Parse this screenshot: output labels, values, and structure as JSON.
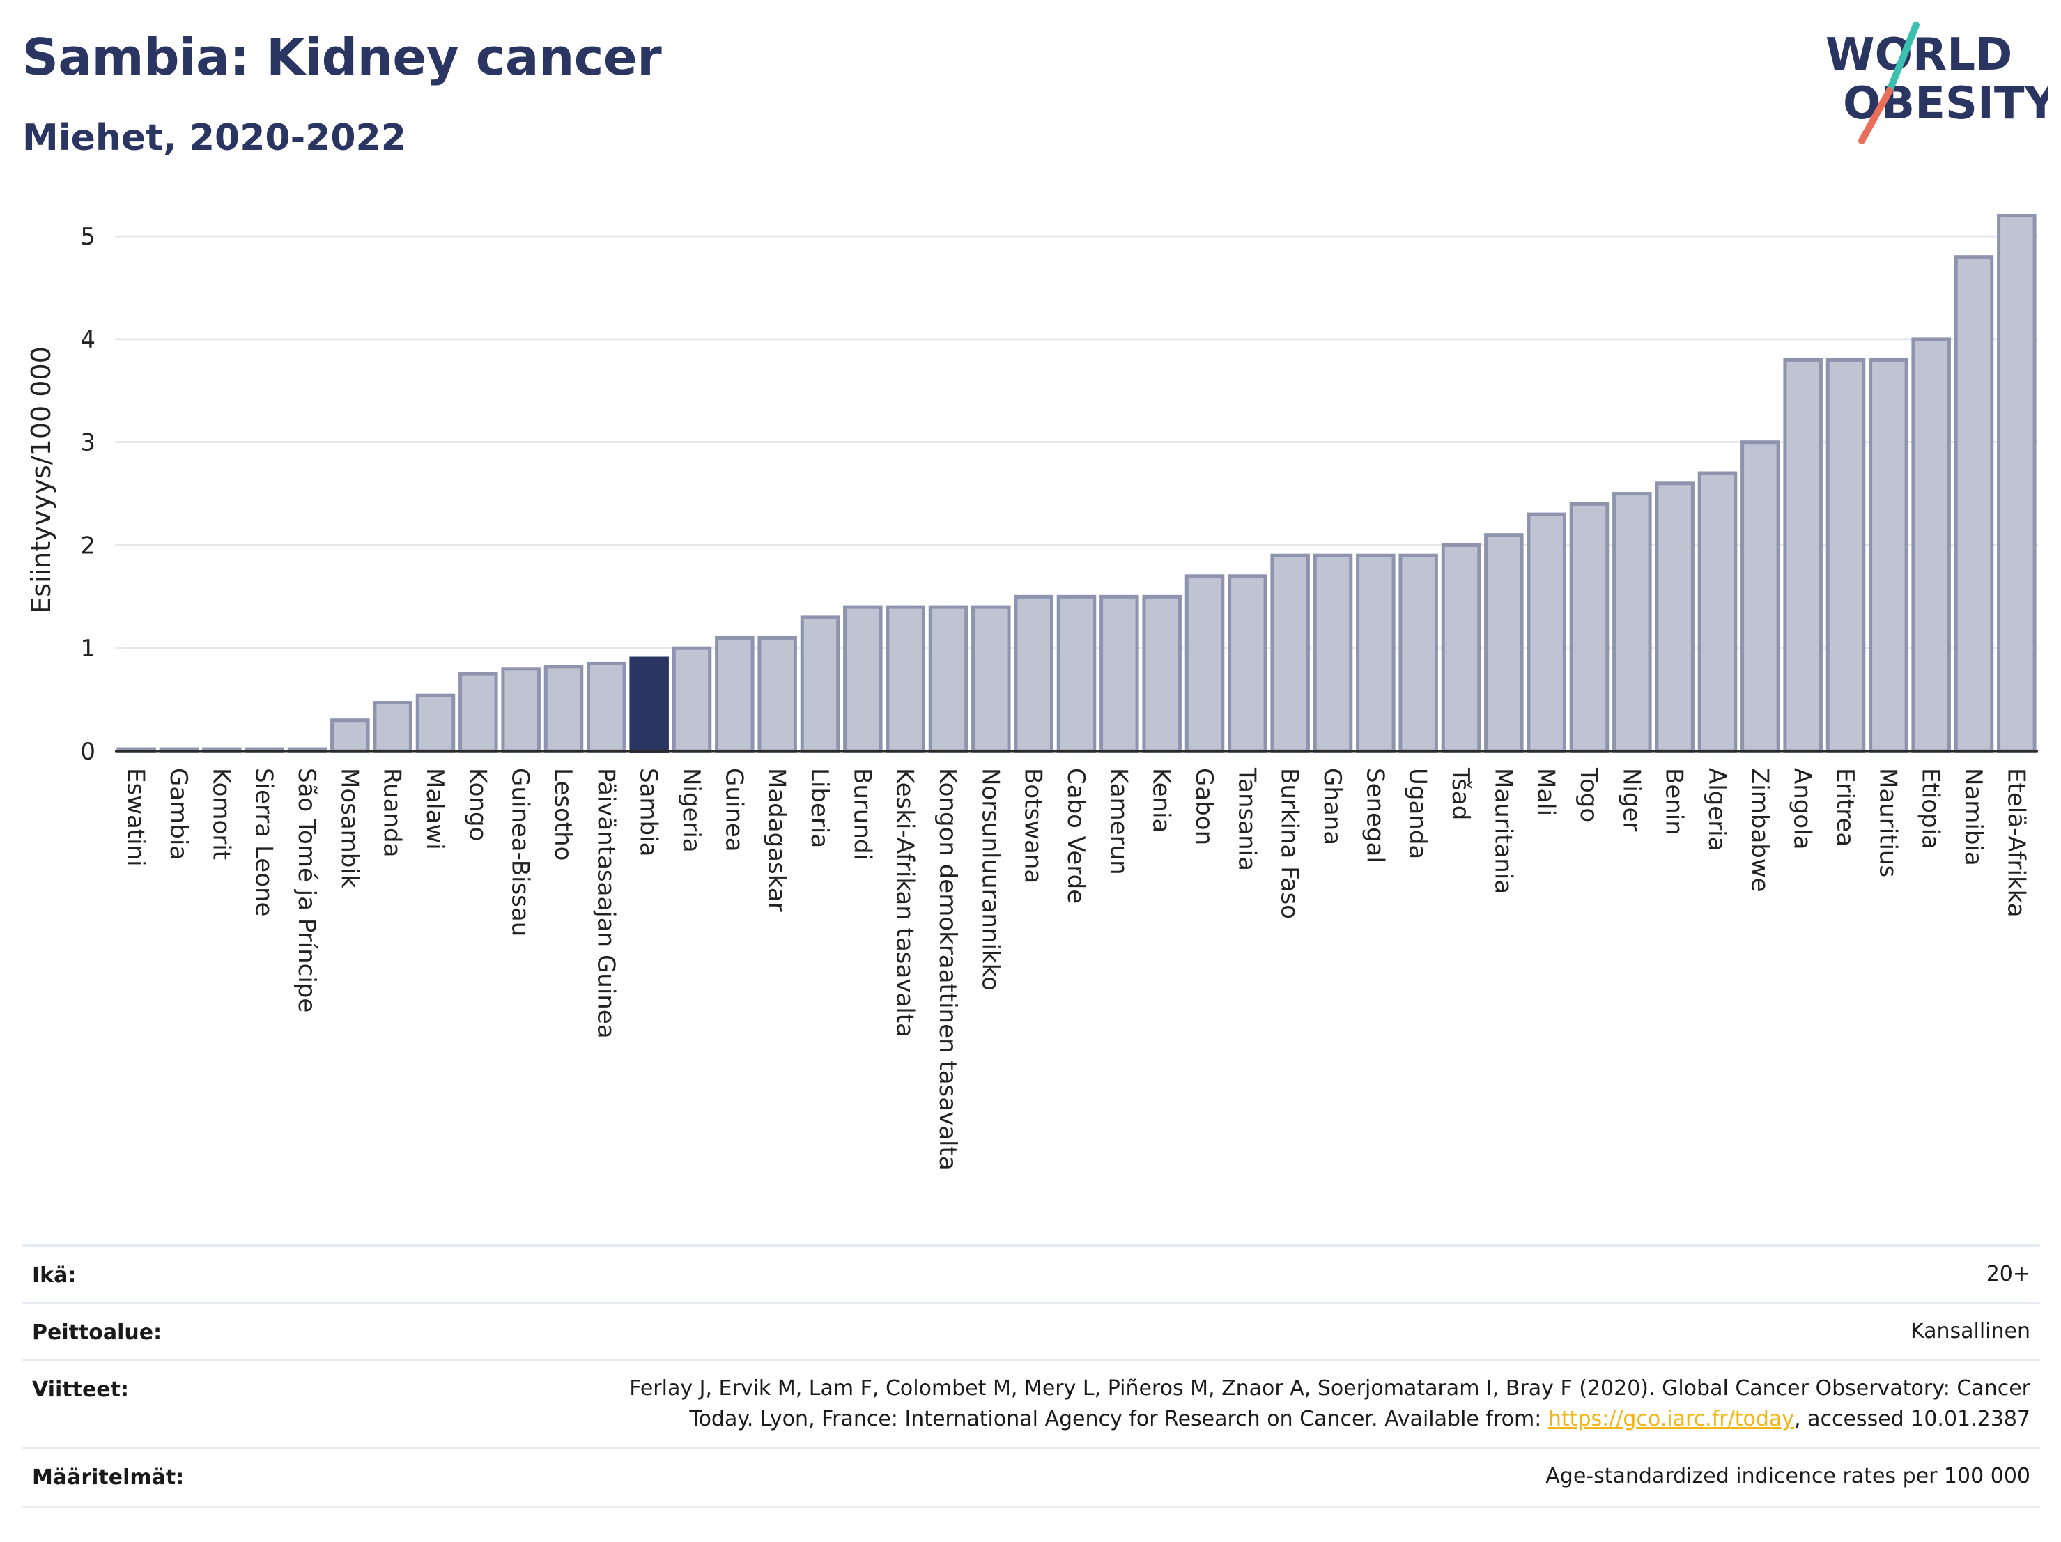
{
  "header": {
    "title": "Sambia: Kidney cancer",
    "subtitle": "Miehet, 2020-2022"
  },
  "logo": {
    "line1": "WORLD",
    "line2": "OBESITY"
  },
  "colors": {
    "title": "#2b3561",
    "bar": "#bfc3d2",
    "bar_edge": "#8e94ae",
    "highlight": "#2b3561",
    "link": "#f2b516",
    "logo_teal": "#3bbfb0",
    "logo_coral": "#e8705a"
  },
  "chart_data": {
    "type": "bar",
    "ylabel": "Esiintyvyys/100 000",
    "ylim": [
      0,
      5.4
    ],
    "yticks": [
      0,
      1,
      2,
      3,
      4,
      5
    ],
    "grid": true,
    "highlight": "Sambia",
    "categories": [
      "Eswatini",
      "Gambia",
      "Komorit",
      "Sierra Leone",
      "São Tomé ja Príncipe",
      "Mosambik",
      "Ruanda",
      "Malawi",
      "Kongo",
      "Guinea-Bissau",
      "Lesotho",
      "Päiväntasaajan Guinea",
      "Sambia",
      "Nigeria",
      "Guinea",
      "Madagaskar",
      "Liberia",
      "Burundi",
      "Keski-Afrikan tasavalta",
      "Kongon demokraattinen tasavalta",
      "Norsunluurannikko",
      "Botswana",
      "Cabo Verde",
      "Kamerun",
      "Kenia",
      "Gabon",
      "Tansania",
      "Burkina Faso",
      "Ghana",
      "Senegal",
      "Uganda",
      "Tšad",
      "Mauritania",
      "Mali",
      "Togo",
      "Niger",
      "Benin",
      "Algeria",
      "Zimbabwe",
      "Angola",
      "Eritrea",
      "Mauritius",
      "Etiopia",
      "Namibia",
      "Etelä-Afrikka"
    ],
    "values": [
      0.02,
      0.02,
      0.02,
      0.02,
      0.02,
      0.3,
      0.47,
      0.54,
      0.75,
      0.8,
      0.82,
      0.85,
      0.9,
      1.0,
      1.1,
      1.1,
      1.3,
      1.4,
      1.4,
      1.4,
      1.4,
      1.5,
      1.5,
      1.5,
      1.5,
      1.7,
      1.7,
      1.9,
      1.9,
      1.9,
      1.9,
      2.0,
      2.1,
      2.3,
      2.4,
      2.5,
      2.6,
      2.7,
      3.0,
      3.8,
      3.8,
      3.8,
      4.0,
      4.8,
      5.2
    ]
  },
  "info": {
    "age_label": "Ikä:",
    "age_value": "20+",
    "coverage_label": "Peittoalue:",
    "coverage_value": "Kansallinen",
    "refs_label": "Viitteet:",
    "refs_line1": "Ferlay J, Ervik M, Lam F, Colombet M, Mery L, Piñeros M, Znaor A, Soerjomataram I, Bray F (2020). Global Cancer Observatory: Cancer",
    "refs_line2_pre": "Today. Lyon, France: International Agency for Research on Cancer. Available from: ",
    "refs_link": "https://gco.iarc.fr/today",
    "refs_line2_post": ", accessed 10.01.2387",
    "defs_label": "Määritelmät:",
    "defs_value": "Age-standardized indicence rates per 100 000"
  }
}
